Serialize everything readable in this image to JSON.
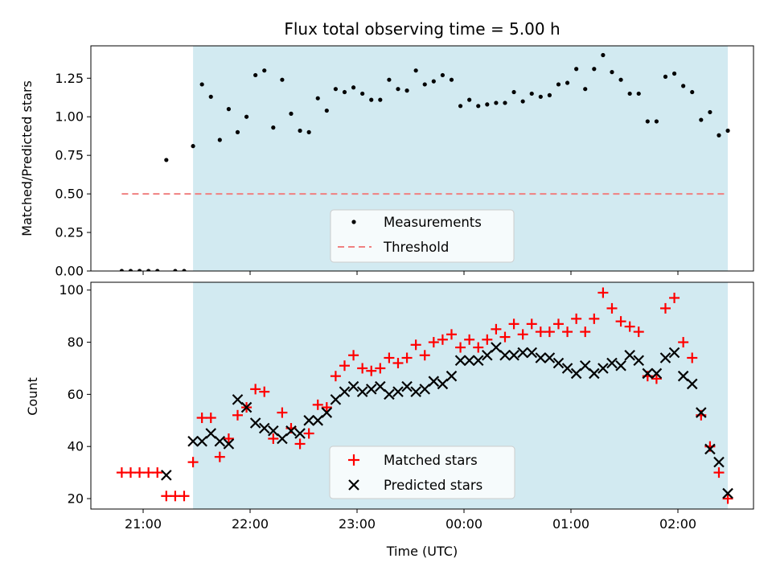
{
  "chart_data": [
    {
      "type": "scatter",
      "title": "Flux total observing time = 5.00 h",
      "xlabel": "",
      "ylabel": "Matched/Predicted stars",
      "ylim": [
        0,
        1.46
      ],
      "yticks": [
        "0.00",
        "0.25",
        "0.50",
        "0.75",
        "1.00",
        "1.25"
      ],
      "legend": {
        "placement": "lower-center",
        "entries": [
          "Measurements",
          "Threshold"
        ]
      },
      "threshold": 0.5,
      "threshold_color": "#f08080",
      "shade_color": "#add8e6",
      "series": [
        {
          "name": "Measurements",
          "color": "#000000",
          "x": [
            "20:48",
            "20:53",
            "20:58",
            "21:03",
            "21:08",
            "21:13",
            "21:18",
            "21:23",
            "21:28",
            "21:33",
            "21:38",
            "21:43",
            "21:48",
            "21:53",
            "21:58",
            "22:03",
            "22:08",
            "22:13",
            "22:18",
            "22:23",
            "22:28",
            "22:33",
            "22:38",
            "22:43",
            "22:48",
            "22:53",
            "22:58",
            "23:03",
            "23:08",
            "23:13",
            "23:18",
            "23:23",
            "23:28",
            "23:33",
            "23:38",
            "23:43",
            "23:48",
            "23:53",
            "23:58",
            "00:03",
            "00:08",
            "00:13",
            "00:18",
            "00:23",
            "00:28",
            "00:33",
            "00:38",
            "00:43",
            "00:48",
            "00:53",
            "00:58",
            "01:03",
            "01:08",
            "01:13",
            "01:18",
            "01:23",
            "01:28",
            "01:33",
            "01:38",
            "01:43",
            "01:48",
            "01:53",
            "01:58",
            "02:03",
            "02:08",
            "02:13",
            "02:18",
            "02:23",
            "02:28"
          ],
          "values": [
            0.0,
            0.0,
            0.0,
            0.0,
            0.0,
            0.72,
            0.0,
            0.0,
            0.81,
            1.21,
            1.13,
            0.85,
            1.05,
            0.9,
            1.0,
            1.27,
            1.3,
            0.93,
            1.24,
            1.02,
            0.91,
            0.9,
            1.12,
            1.04,
            1.18,
            1.16,
            1.19,
            1.15,
            1.11,
            1.11,
            1.24,
            1.18,
            1.17,
            1.3,
            1.21,
            1.23,
            1.27,
            1.24,
            1.07,
            1.11,
            1.07,
            1.08,
            1.09,
            1.09,
            1.16,
            1.1,
            1.15,
            1.13,
            1.14,
            1.21,
            1.22,
            1.31,
            1.18,
            1.31,
            1.4,
            1.29,
            1.24,
            1.15,
            1.15,
            0.97,
            0.97,
            1.26,
            1.28,
            1.2,
            1.16,
            0.98,
            1.03,
            0.88,
            0.91
          ]
        }
      ]
    },
    {
      "type": "scatter",
      "title": "",
      "xlabel": "Time (UTC)",
      "ylabel": "Count",
      "ylim": [
        16,
        103
      ],
      "yticks": [
        "20",
        "40",
        "60",
        "80",
        "100"
      ],
      "xticks": [
        "21:00",
        "22:00",
        "23:00",
        "00:00",
        "01:00",
        "02:00"
      ],
      "legend": {
        "placement": "lower-center",
        "entries": [
          "Matched stars",
          "Predicted stars"
        ]
      },
      "shade_color": "#add8e6",
      "series": [
        {
          "name": "Matched stars",
          "marker": "plus",
          "color": "#ff0000",
          "x": [
            "20:48",
            "20:53",
            "20:58",
            "21:03",
            "21:08",
            "21:13",
            "21:18",
            "21:23",
            "21:28",
            "21:33",
            "21:38",
            "21:43",
            "21:48",
            "21:53",
            "21:58",
            "22:03",
            "22:08",
            "22:13",
            "22:18",
            "22:23",
            "22:28",
            "22:33",
            "22:38",
            "22:43",
            "22:48",
            "22:53",
            "22:58",
            "23:03",
            "23:08",
            "23:13",
            "23:18",
            "23:23",
            "23:28",
            "23:33",
            "23:38",
            "23:43",
            "23:48",
            "23:53",
            "23:58",
            "00:03",
            "00:08",
            "00:13",
            "00:18",
            "00:23",
            "00:28",
            "00:33",
            "00:38",
            "00:43",
            "00:48",
            "00:53",
            "00:58",
            "01:03",
            "01:08",
            "01:13",
            "01:18",
            "01:23",
            "01:28",
            "01:33",
            "01:38",
            "01:43",
            "01:48",
            "01:53",
            "01:58",
            "02:03",
            "02:08",
            "02:13",
            "02:18",
            "02:23",
            "02:28"
          ],
          "values": [
            30,
            30,
            30,
            30,
            30,
            21,
            21,
            21,
            34,
            51,
            51,
            36,
            43,
            52,
            55,
            62,
            61,
            43,
            53,
            47,
            41,
            45,
            56,
            55,
            67,
            71,
            75,
            70,
            69,
            70,
            74,
            72,
            74,
            79,
            75,
            80,
            81,
            83,
            78,
            81,
            78,
            81,
            85,
            82,
            87,
            83,
            87,
            84,
            84,
            87,
            84,
            89,
            84,
            89,
            99,
            93,
            88,
            86,
            84,
            67,
            66,
            93,
            97,
            80,
            74,
            52,
            40,
            30,
            20
          ]
        },
        {
          "name": "Predicted stars",
          "marker": "x",
          "color": "#000000",
          "x": [
            "21:13",
            "21:28",
            "21:33",
            "21:38",
            "21:43",
            "21:48",
            "21:53",
            "21:58",
            "22:03",
            "22:08",
            "22:13",
            "22:18",
            "22:23",
            "22:28",
            "22:33",
            "22:38",
            "22:43",
            "22:48",
            "22:53",
            "22:58",
            "23:03",
            "23:08",
            "23:13",
            "23:18",
            "23:23",
            "23:28",
            "23:33",
            "23:38",
            "23:43",
            "23:48",
            "23:53",
            "23:58",
            "00:03",
            "00:08",
            "00:13",
            "00:18",
            "00:23",
            "00:28",
            "00:33",
            "00:38",
            "00:43",
            "00:48",
            "00:53",
            "00:58",
            "01:03",
            "01:08",
            "01:13",
            "01:18",
            "01:23",
            "01:28",
            "01:33",
            "01:38",
            "01:43",
            "01:48",
            "01:53",
            "01:58",
            "02:03",
            "02:08",
            "02:13",
            "02:18",
            "02:23",
            "02:28"
          ],
          "values": [
            29,
            42,
            42,
            45,
            42,
            41,
            58,
            55,
            49,
            47,
            46,
            43,
            46,
            45,
            50,
            50,
            53,
            58,
            61,
            63,
            61,
            62,
            63,
            60,
            61,
            63,
            61,
            62,
            65,
            64,
            67,
            73,
            73,
            73,
            75,
            78,
            75,
            75,
            76,
            76,
            74,
            74,
            72,
            70,
            68,
            71,
            68,
            70,
            72,
            71,
            75,
            73,
            68,
            68,
            74,
            76,
            67,
            64,
            53,
            39,
            34,
            22
          ]
        }
      ]
    }
  ]
}
